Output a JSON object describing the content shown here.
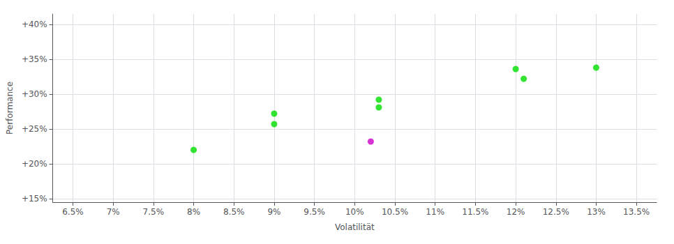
{
  "chart_data": {
    "type": "scatter",
    "x": [
      8.0,
      9.0,
      9.0,
      10.3,
      10.3,
      10.2,
      12.0,
      12.1,
      13.0
    ],
    "values": [
      22.0,
      27.2,
      25.7,
      29.2,
      28.1,
      23.2,
      33.6,
      32.2,
      33.8
    ],
    "colors": [
      "#00dd00",
      "#00dd00",
      "#00dd00",
      "#00dd00",
      "#00dd00",
      "#cc00cc",
      "#00dd00",
      "#00dd00",
      "#00dd00"
    ],
    "xlabel": "Volatilität",
    "ylabel": "Performance",
    "xlim": [
      6.25,
      13.75
    ],
    "ylim": [
      14.5,
      41.5
    ],
    "xticks": [
      {
        "value": 6.5,
        "label": "6.5%"
      },
      {
        "value": 7.0,
        "label": "7%"
      },
      {
        "value": 7.5,
        "label": "7.5%"
      },
      {
        "value": 8.0,
        "label": "8%"
      },
      {
        "value": 8.5,
        "label": "8.5%"
      },
      {
        "value": 9.0,
        "label": "9%"
      },
      {
        "value": 9.5,
        "label": "9.5%"
      },
      {
        "value": 10.0,
        "label": "10%"
      },
      {
        "value": 10.5,
        "label": "10.5%"
      },
      {
        "value": 11.0,
        "label": "11%"
      },
      {
        "value": 11.5,
        "label": "11.5%"
      },
      {
        "value": 12.0,
        "label": "12%"
      },
      {
        "value": 12.5,
        "label": "12.5%"
      },
      {
        "value": 13.0,
        "label": "13%"
      },
      {
        "value": 13.5,
        "label": "13.5%"
      }
    ],
    "yticks": [
      {
        "value": 15.0,
        "label": "+15%"
      },
      {
        "value": 20.0,
        "label": "+20%"
      },
      {
        "value": 25.0,
        "label": "+25%"
      },
      {
        "value": 30.0,
        "label": "+30%"
      },
      {
        "value": 35.0,
        "label": "+35%"
      },
      {
        "value": 40.0,
        "label": "+40%"
      }
    ],
    "grid": true
  }
}
